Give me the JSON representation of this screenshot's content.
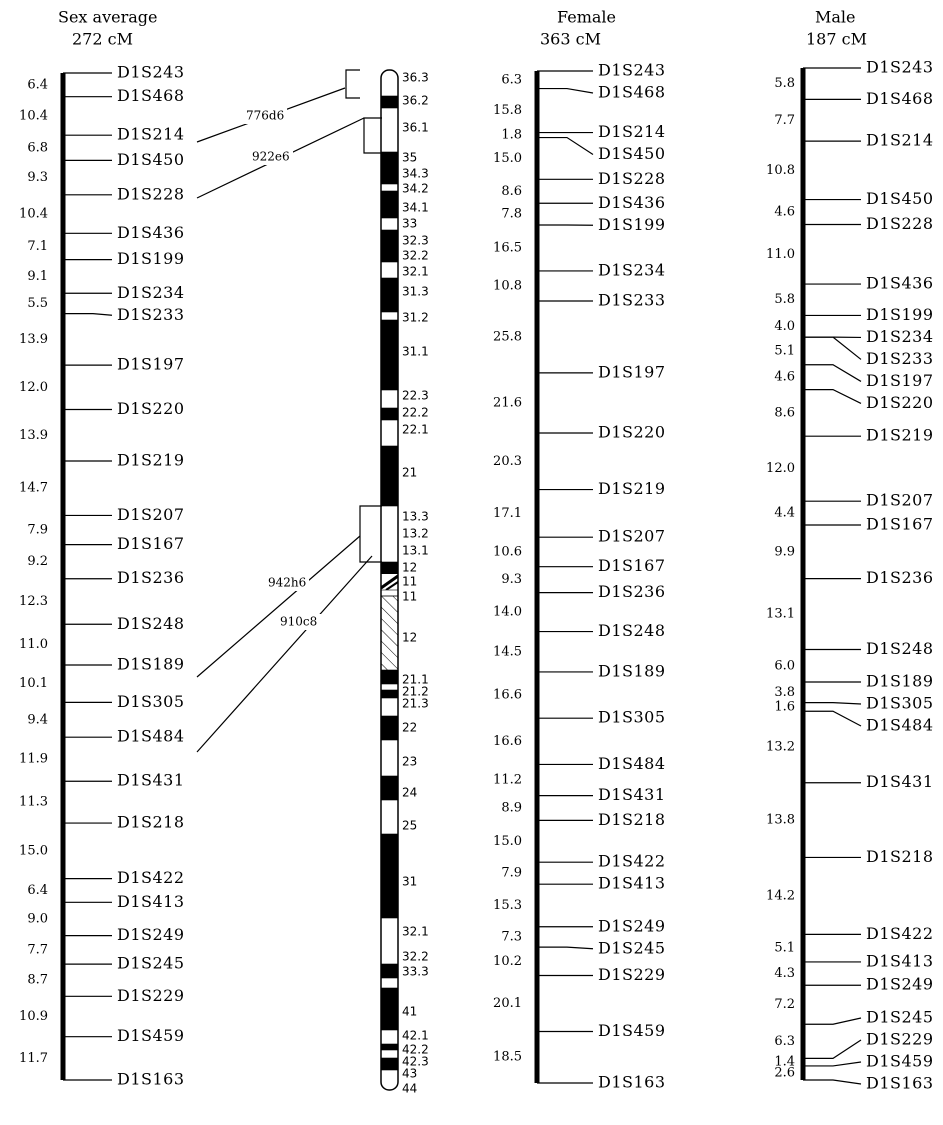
{
  "maps": [
    {
      "title": "Sex average",
      "total": "272 cM",
      "markers": [
        "D1S243",
        "D1S468",
        "D1S214",
        "D1S450",
        "D1S228",
        "D1S436",
        "D1S199",
        "D1S234",
        "D1S233",
        "D1S197",
        "D1S220",
        "D1S219",
        "D1S207",
        "D1S167",
        "D1S236",
        "D1S248",
        "D1S189",
        "D1S305",
        "D1S484",
        "D1S431",
        "D1S218",
        "D1S422",
        "D1S413",
        "D1S249",
        "D1S245",
        "D1S229",
        "D1S459",
        "D1S163"
      ],
      "intervals": [
        "6.4",
        "10.4",
        "6.8",
        "9.3",
        "10.4",
        "7.1",
        "9.1",
        "5.5",
        "13.9",
        "12.0",
        "13.9",
        "14.7",
        "7.9",
        "9.2",
        "12.3",
        "11.0",
        "10.1",
        "9.4",
        "11.9",
        "11.3",
        "15.0",
        "6.4",
        "9.0",
        "7.7",
        "8.7",
        "10.9",
        "11.7"
      ]
    },
    {
      "title": "Female",
      "total": "363 cM",
      "markers": [
        "D1S243",
        "D1S468",
        "D1S214",
        "D1S450",
        "D1S228",
        "D1S436",
        "D1S199",
        "D1S234",
        "D1S233",
        "D1S197",
        "D1S220",
        "D1S219",
        "D1S207",
        "D1S167",
        "D1S236",
        "D1S248",
        "D1S189",
        "D1S305",
        "D1S484",
        "D1S431",
        "D1S218",
        "D1S422",
        "D1S413",
        "D1S249",
        "D1S245",
        "D1S229",
        "D1S459",
        "D1S163"
      ],
      "intervals": [
        "6.3",
        "15.8",
        "1.8",
        "15.0",
        "8.6",
        "7.8",
        "16.5",
        "10.8",
        "25.8",
        "21.6",
        "20.3",
        "17.1",
        "10.6",
        "9.3",
        "14.0",
        "14.5",
        "16.6",
        "16.6",
        "11.2",
        "8.9",
        "15.0",
        "7.9",
        "15.3",
        "7.3",
        "10.2",
        "20.1",
        "18.5"
      ]
    },
    {
      "title": "Male",
      "total": "187 cM",
      "markers": [
        "D1S243",
        "D1S468",
        "D1S214",
        "D1S450",
        "D1S228",
        "D1S436",
        "D1S199",
        "D1S234",
        "D1S233",
        "D1S197",
        "D1S220",
        "D1S219",
        "D1S207",
        "D1S167",
        "D1S236",
        "D1S248",
        "D1S189",
        "D1S305",
        "D1S484",
        "D1S431",
        "D1S218",
        "D1S422",
        "D1S413",
        "D1S249",
        "D1S245",
        "D1S229",
        "D1S459",
        "D1S163"
      ],
      "intervals": [
        "5.8",
        "7.7",
        "10.8",
        "4.6",
        "11.0",
        "5.8",
        "4.0",
        null,
        "5.1",
        "4.6",
        "8.6",
        "12.0",
        "4.4",
        "9.9",
        "13.1",
        "6.0",
        "3.8",
        "1.6",
        "13.2",
        "13.8",
        "14.2",
        "5.1",
        "4.3",
        "7.2",
        "6.3",
        "1.4",
        "2.6"
      ]
    }
  ],
  "ideogram": {
    "bands": [
      "36.3",
      "36.2",
      "36.1",
      "35",
      "34.3",
      "34.2",
      "34.1",
      "33",
      "32.3",
      "32.2",
      "32.1",
      "31.3",
      "31.2",
      "31.1",
      "22.3",
      "22.2",
      "22.1",
      "21",
      "13.3",
      "13.2",
      "13.1",
      "12",
      "11",
      "11",
      "12",
      "21.1",
      "21.2",
      "21.3",
      "22",
      "23",
      "24",
      "25",
      "31",
      "32.1",
      "32.2",
      "33.3",
      "41",
      "42.1",
      "42.2",
      "42.3",
      "43",
      "44"
    ]
  },
  "clones": [
    "776d6",
    "922e6",
    "942h6",
    "910c8"
  ]
}
